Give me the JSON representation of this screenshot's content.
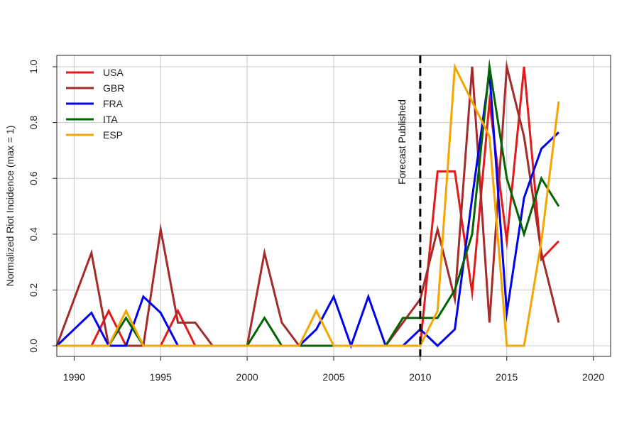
{
  "chart_data": {
    "type": "line",
    "title": "",
    "xlabel": "",
    "ylabel": "Normalized Riot Incidence (max = 1)",
    "xlim": [
      1989,
      2021
    ],
    "ylim": [
      0,
      1
    ],
    "x_ticks": [
      1990,
      1995,
      2000,
      2005,
      2010,
      2015,
      2020
    ],
    "y_ticks": [
      0.0,
      0.2,
      0.4,
      0.6,
      0.8,
      1.0
    ],
    "x_tick_labels": [
      "1990",
      "1995",
      "2000",
      "2005",
      "2010",
      "2015",
      "2020"
    ],
    "y_tick_labels": [
      "0.0",
      "0.2",
      "0.4",
      "0.6",
      "0.8",
      "1.0"
    ],
    "grid": true,
    "legend_position": "top-left",
    "x": [
      1989,
      1990,
      1991,
      1992,
      1993,
      1994,
      1995,
      1996,
      1997,
      1998,
      1999,
      2000,
      2001,
      2002,
      2003,
      2004,
      2005,
      2006,
      2007,
      2008,
      2009,
      2010,
      2011,
      2012,
      2013,
      2014,
      2015,
      2016,
      2017,
      2018
    ],
    "series": [
      {
        "name": "USA",
        "color": "#e31a1c",
        "values": [
          0,
          0,
          0,
          0.125,
          0,
          0,
          0,
          0.125,
          0,
          0,
          0,
          0,
          0,
          0,
          0,
          0,
          0,
          0,
          0,
          0,
          0,
          0,
          0.625,
          0.625,
          0.19,
          0.875,
          0.375,
          1.0,
          0.31,
          0.375
        ]
      },
      {
        "name": "GBR",
        "color": "#a52a2a",
        "values": [
          0,
          0.167,
          0.333,
          0,
          0,
          0,
          0.417,
          0.083,
          0.083,
          0,
          0,
          0,
          0.333,
          0.083,
          0,
          0,
          0,
          0,
          0,
          0,
          0.083,
          0.167,
          0.417,
          0.167,
          1.0,
          0.083,
          1.0,
          0.75,
          0.333,
          0.083
        ]
      },
      {
        "name": "FRA",
        "color": "#0000ee",
        "values": [
          0,
          0.059,
          0.118,
          0,
          0,
          0.176,
          0.118,
          0,
          0,
          0,
          0,
          0,
          0,
          0,
          0,
          0.059,
          0.176,
          0,
          0.176,
          0,
          0,
          0.059,
          0,
          0.059,
          0.53,
          0.98,
          0.118,
          0.53,
          0.706,
          0.765
        ]
      },
      {
        "name": "ITA",
        "color": "#006400",
        "values": [
          0,
          0,
          0,
          0,
          0.1,
          0,
          0,
          0,
          0,
          0,
          0,
          0,
          0.1,
          0,
          0,
          0,
          0,
          0,
          0,
          0,
          0.1,
          0.1,
          0.1,
          0.2,
          0.4,
          1.0,
          0.6,
          0.4,
          0.6,
          0.5
        ]
      },
      {
        "name": "ESP",
        "color": "#f5a500",
        "values": [
          0,
          0,
          0,
          0,
          0.125,
          0,
          0,
          0,
          0,
          0,
          0,
          0,
          0,
          0,
          0,
          0.125,
          0,
          0,
          0,
          0,
          0,
          0,
          0.125,
          1.0,
          0.875,
          0.75,
          0,
          0,
          0.375,
          0.875
        ]
      }
    ],
    "annotations": [
      {
        "type": "vline",
        "x": 2010,
        "label": "Forecast Published",
        "color": "#000000",
        "style": "dashed"
      }
    ]
  }
}
